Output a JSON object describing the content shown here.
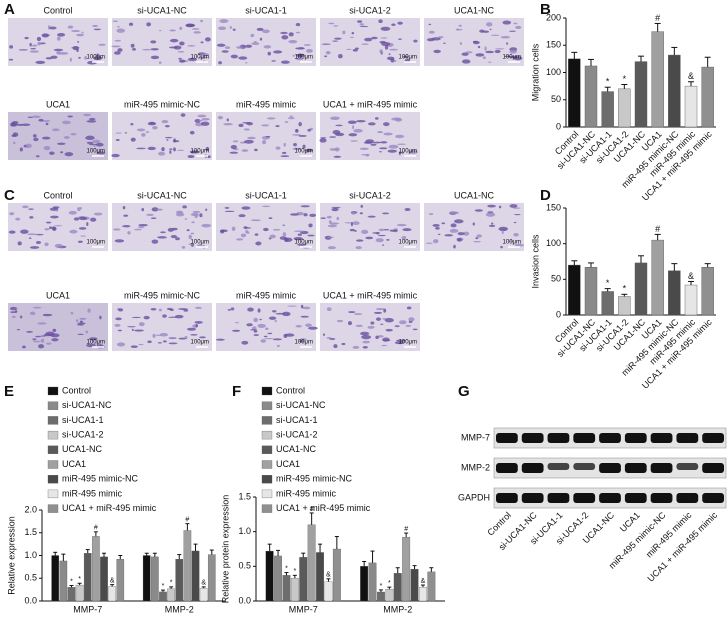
{
  "panel_letters": [
    "A",
    "B",
    "C",
    "D",
    "E",
    "F",
    "G"
  ],
  "migration_images": {
    "labels": [
      "Control",
      "si-UCA1-NC",
      "si-UCA1-1",
      "si-UCA1-2",
      "UCA1-NC",
      "UCA1",
      "miR-495 mimic-NC",
      "miR-495 mimic",
      "UCA1 + miR-495 mimic"
    ],
    "scale_bar": "100μm"
  },
  "invasion_images": {
    "labels": [
      "Control",
      "si-UCA1-NC",
      "si-UCA1-1",
      "si-UCA1-2",
      "UCA1-NC",
      "UCA1",
      "miR-495 mimic-NC",
      "miR-495 mimic",
      "UCA1 + miR-495 mimic"
    ],
    "scale_bar": "100μm"
  },
  "chart_data": [
    {
      "type": "bar",
      "ylabel": "Migration cells",
      "categories": [
        "Control",
        "si-UCA1-NC",
        "si-UCA1-1",
        "si-UCA1-2",
        "UCA1-NC",
        "UCA1",
        "miR-495 mimic-NC",
        "miR-495 mimic",
        "UCA1 + miR-495 mimic"
      ],
      "values": [
        125,
        112,
        65,
        70,
        120,
        175,
        132,
        75,
        110
      ],
      "errors": [
        12,
        12,
        8,
        8,
        10,
        15,
        14,
        8,
        18
      ],
      "markers": [
        null,
        null,
        "*",
        "*",
        null,
        "#",
        null,
        "&",
        null
      ],
      "colors": [
        "#111111",
        "#8a8a8a",
        "#6d6d6d",
        "#c8c8c8",
        "#5a5a5a",
        "#a0a0a0",
        "#4a4a4a",
        "#e6e6e6",
        "#909090"
      ],
      "ylim": [
        0,
        200
      ],
      "yticks": [
        0,
        50,
        100,
        150,
        200
      ]
    },
    {
      "type": "bar",
      "ylabel": "Invasion cells",
      "categories": [
        "Control",
        "si-UCA1-NC",
        "si-UCA1-1",
        "si-UCA1-2",
        "UCA1-NC",
        "UCA1",
        "miR-495 mimic-NC",
        "miR-495 mimic",
        "UCA1 + miR-495 mimic"
      ],
      "values": [
        70,
        67,
        33,
        26,
        73,
        105,
        62,
        42,
        67
      ],
      "errors": [
        6,
        6,
        4,
        3,
        10,
        8,
        10,
        5,
        5
      ],
      "markers": [
        null,
        null,
        "*",
        "*",
        null,
        "#",
        null,
        "&",
        null
      ],
      "colors": [
        "#111111",
        "#8a8a8a",
        "#6d6d6d",
        "#c8c8c8",
        "#5a5a5a",
        "#a0a0a0",
        "#4a4a4a",
        "#e6e6e6",
        "#909090"
      ],
      "ylim": [
        0,
        150
      ],
      "yticks": [
        0,
        50,
        100,
        150
      ]
    },
    {
      "type": "bar",
      "ylabel": "Relative expression",
      "categories": [
        "MMP-7",
        "MMP-2"
      ],
      "ylim": [
        0,
        2
      ],
      "yticks": [
        {
          "value": 0,
          "label": "0.0"
        },
        0.5,
        {
          "value": 1,
          "label": "1.0"
        },
        1.5,
        {
          "value": 2,
          "label": "2.0"
        }
      ],
      "series": [
        {
          "name": "Control",
          "color": "#111111",
          "values": [
            1.0,
            1.0
          ],
          "errors": [
            0.07,
            0.05
          ]
        },
        {
          "name": "si-UCA1-NC",
          "color": "#8a8a8a",
          "values": [
            0.88,
            0.97
          ],
          "errors": [
            0.15,
            0.08
          ]
        },
        {
          "name": "si-UCA1-1",
          "color": "#6d6d6d",
          "values": [
            0.3,
            0.2
          ],
          "errors": [
            0.04,
            0.04
          ],
          "markers": [
            "*",
            "*"
          ]
        },
        {
          "name": "si-UCA1-2",
          "color": "#c8c8c8",
          "values": [
            0.35,
            0.27
          ],
          "errors": [
            0.04,
            0.04
          ],
          "markers": [
            "*",
            "*"
          ]
        },
        {
          "name": "UCA1-NC",
          "color": "#5a5a5a",
          "values": [
            1.05,
            0.92
          ],
          "errors": [
            0.08,
            0.1
          ]
        },
        {
          "name": "UCA1",
          "color": "#a0a0a0",
          "values": [
            1.42,
            1.55
          ],
          "errors": [
            0.1,
            0.15
          ],
          "markers": [
            "#",
            "#"
          ]
        },
        {
          "name": "miR-495 mimic-NC",
          "color": "#4a4a4a",
          "values": [
            0.97,
            1.1
          ],
          "errors": [
            0.08,
            0.15
          ]
        },
        {
          "name": "miR-495 mimic",
          "color": "#e6e6e6",
          "values": [
            0.32,
            0.28
          ],
          "errors": [
            0.04,
            0.03
          ],
          "markers": [
            "&",
            "&"
          ]
        },
        {
          "name": "UCA1 + miR-495 mimic",
          "color": "#909090",
          "values": [
            0.92,
            1.02
          ],
          "errors": [
            0.08,
            0.1
          ]
        }
      ]
    },
    {
      "type": "bar",
      "ylabel": "Relative protein expression",
      "categories": [
        "MMP-7",
        "MMP-2"
      ],
      "ylim": [
        0,
        1.5
      ],
      "yticks": [
        {
          "value": 0,
          "label": "0.0"
        },
        0.5,
        {
          "value": 1,
          "label": "1.0"
        },
        1.5
      ],
      "series": [
        {
          "name": "Control",
          "color": "#111111",
          "values": [
            0.72,
            0.5
          ],
          "errors": [
            0.1,
            0.07
          ]
        },
        {
          "name": "si-UCA1-NC",
          "color": "#8a8a8a",
          "values": [
            0.65,
            0.55
          ],
          "errors": [
            0.08,
            0.17
          ]
        },
        {
          "name": "si-UCA1-1",
          "color": "#6d6d6d",
          "values": [
            0.37,
            0.13
          ],
          "errors": [
            0.04,
            0.03
          ],
          "markers": [
            "*",
            "*"
          ]
        },
        {
          "name": "si-UCA1-2",
          "color": "#c8c8c8",
          "values": [
            0.33,
            0.17
          ],
          "errors": [
            0.04,
            0.03
          ],
          "markers": [
            "*",
            "*"
          ]
        },
        {
          "name": "UCA1-NC",
          "color": "#5a5a5a",
          "values": [
            0.63,
            0.4
          ],
          "errors": [
            0.06,
            0.08
          ]
        },
        {
          "name": "UCA1",
          "color": "#a0a0a0",
          "values": [
            1.1,
            0.92
          ],
          "errors": [
            0.17,
            0.06
          ],
          "markers": [
            "#",
            "#"
          ]
        },
        {
          "name": "miR-495 mimic-NC",
          "color": "#4a4a4a",
          "values": [
            0.7,
            0.46
          ],
          "errors": [
            0.12,
            0.05
          ]
        },
        {
          "name": "miR-495 mimic",
          "color": "#e6e6e6",
          "values": [
            0.28,
            0.2
          ],
          "errors": [
            0.04,
            0.03
          ],
          "markers": [
            "&",
            "&"
          ]
        },
        {
          "name": "UCA1 + miR-495 mimic",
          "color": "#909090",
          "values": [
            0.75,
            0.42
          ],
          "errors": [
            0.18,
            0.06
          ]
        }
      ]
    }
  ],
  "blot": {
    "proteins": [
      "MMP-7",
      "MMP-2",
      "GAPDH"
    ],
    "lanes": [
      "Control",
      "si-UCA1-NC",
      "si-UCA1-1",
      "si-UCA1-2",
      "UCA1-NC",
      "UCA1",
      "miR-495 mimic-NC",
      "miR-495 mimic",
      "UCA1 + miR-495 mimic"
    ]
  }
}
